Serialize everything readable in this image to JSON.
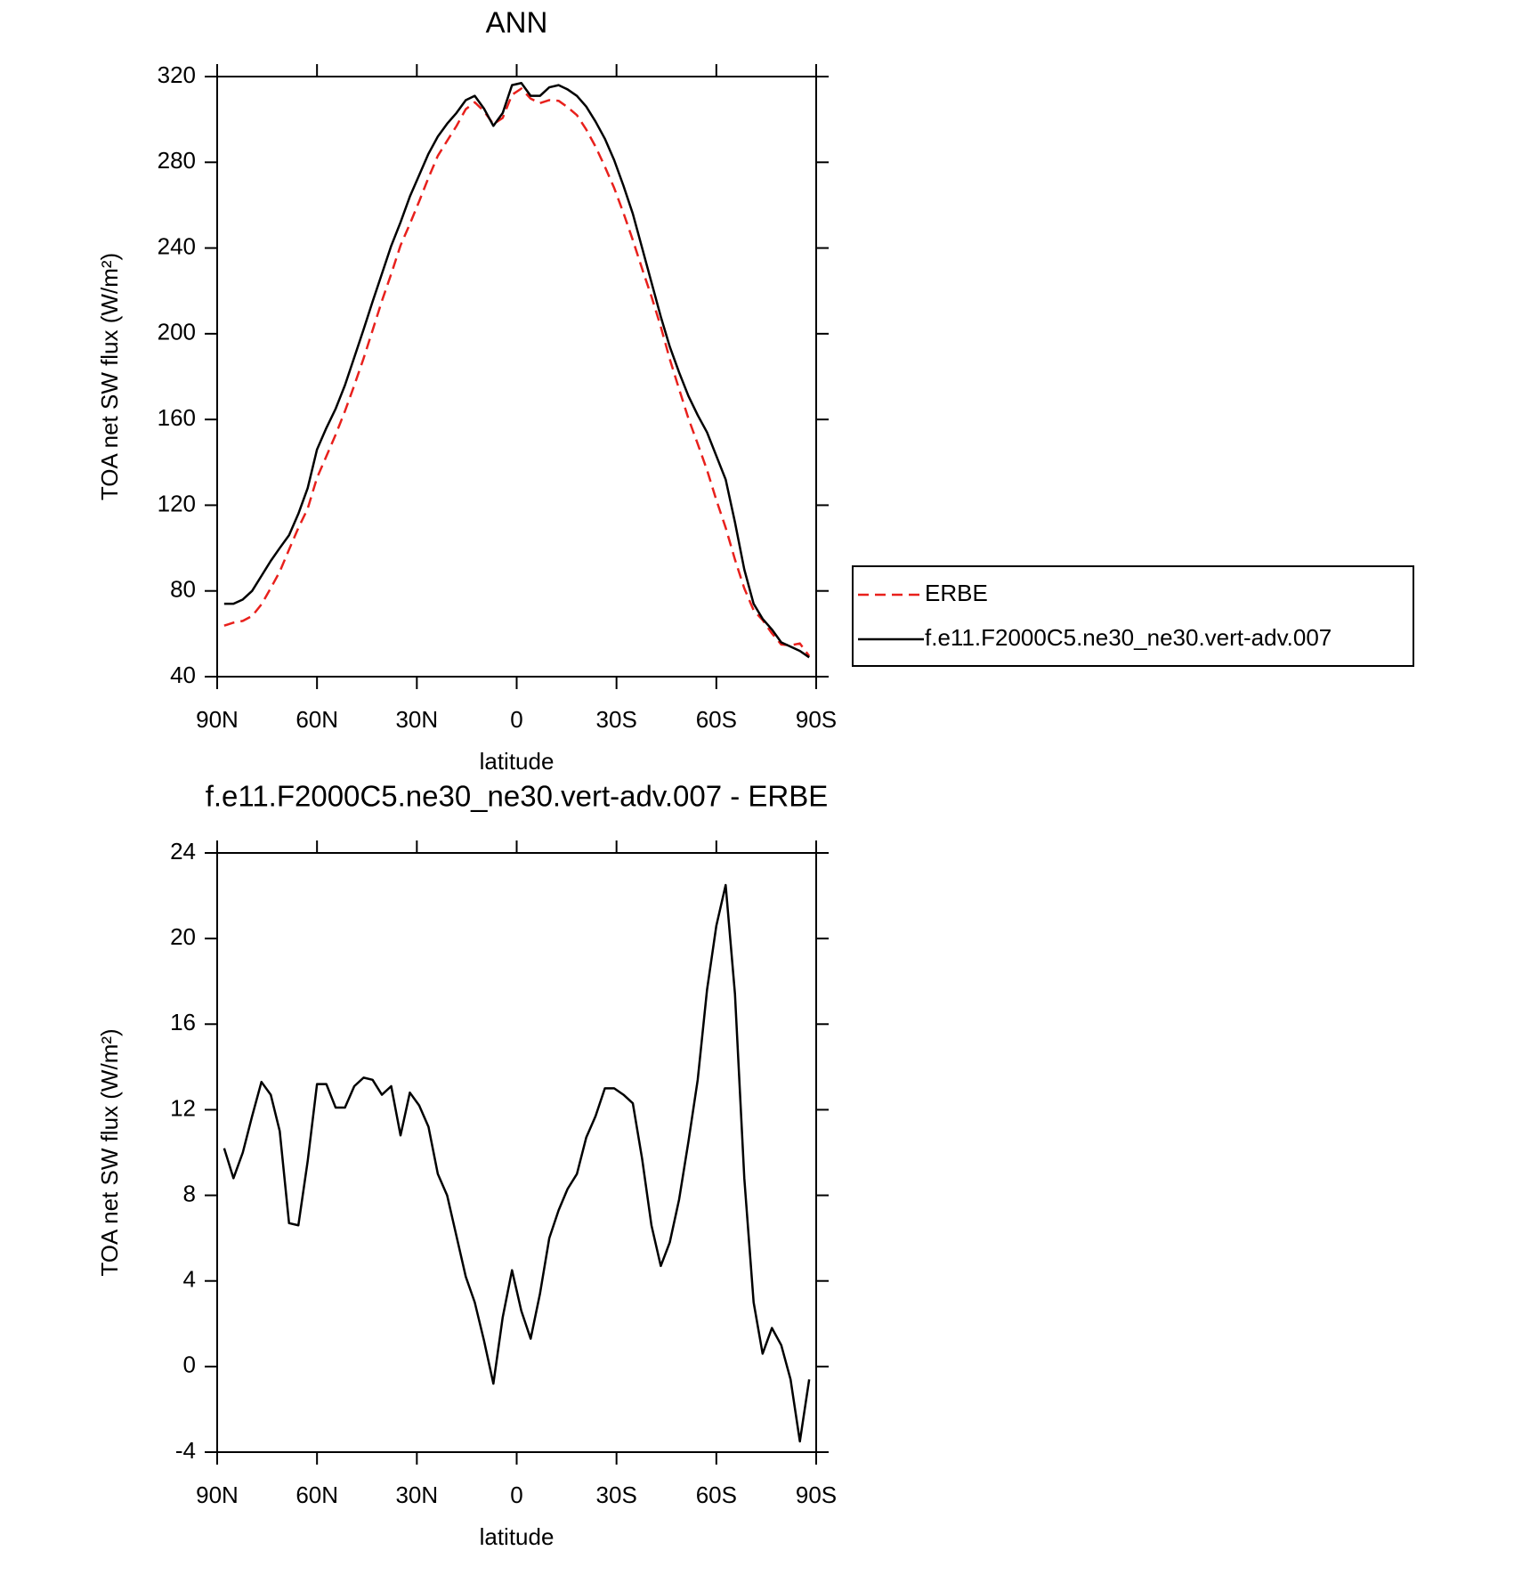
{
  "chart_data": [
    {
      "type": "line",
      "title": "ANN",
      "xlabel": "latitude",
      "ylabel": "TOA net SW flux (W/m²)",
      "xlim": [
        90,
        -90
      ],
      "ylim": [
        40,
        320
      ],
      "xticks": [
        {
          "value": 90,
          "label": "90N"
        },
        {
          "value": 60,
          "label": "60N"
        },
        {
          "value": 30,
          "label": "30N"
        },
        0,
        {
          "value": -30,
          "label": "30S"
        },
        {
          "value": -60,
          "label": "60S"
        },
        {
          "value": -90,
          "label": "90S"
        }
      ],
      "yticks": [
        40,
        80,
        120,
        160,
        200,
        240,
        280,
        320
      ],
      "legend": "outside right",
      "x": [
        87.9,
        85.1,
        82.3,
        79.5,
        76.7,
        73.9,
        71.2,
        68.4,
        65.6,
        62.8,
        60.0,
        57.2,
        54.4,
        51.6,
        48.8,
        46.0,
        43.3,
        40.5,
        37.7,
        34.9,
        32.1,
        29.3,
        26.5,
        23.7,
        20.9,
        18.1,
        15.3,
        12.6,
        9.8,
        7.0,
        4.2,
        1.4,
        -1.4,
        -4.2,
        -7.0,
        -9.8,
        -12.6,
        -15.3,
        -18.1,
        -20.9,
        -23.7,
        -26.5,
        -29.3,
        -32.1,
        -34.9,
        -37.7,
        -40.5,
        -43.3,
        -46.0,
        -48.8,
        -51.6,
        -54.4,
        -57.2,
        -60.0,
        -62.8,
        -65.6,
        -68.4,
        -71.2,
        -73.9,
        -76.7,
        -79.5,
        -82.3,
        -85.1,
        -87.9
      ],
      "series": [
        {
          "name": "ERBE",
          "color": "#e8201c",
          "style": "dashed",
          "values": [
            63.8,
            65.2,
            66,
            68.3,
            73.7,
            81.3,
            89,
            99.3,
            109.4,
            118.4,
            132.8,
            142.8,
            152.9,
            163.9,
            175.9,
            188.5,
            201.6,
            215.3,
            227.9,
            241.2,
            251.2,
            261.8,
            272.8,
            283,
            290,
            296.9,
            304.8,
            308,
            303.8,
            297.8,
            300.7,
            311.5,
            314.4,
            309.7,
            307.6,
            309,
            308.7,
            305.7,
            302,
            295.3,
            287.3,
            278,
            268,
            256.3,
            243.7,
            230.3,
            217.4,
            203.3,
            188.2,
            174.2,
            160.5,
            148.6,
            136.4,
            122.4,
            109.5,
            94.6,
            81.2,
            71,
            66.4,
            60.2,
            55,
            54.6,
            55.5,
            49.6
          ]
        },
        {
          "name": "f.e11.F2000C5.ne30_ne30.vert-adv.007",
          "color": "#000000",
          "style": "solid",
          "values": [
            74,
            74,
            76,
            80,
            87,
            94,
            100,
            106,
            116,
            128,
            146,
            156,
            165,
            176,
            189,
            202,
            215,
            228,
            241,
            252,
            264,
            274,
            284,
            292,
            298,
            303,
            309,
            311,
            305,
            297,
            303,
            316,
            317,
            311,
            311,
            315,
            316,
            314,
            311,
            306,
            299,
            291,
            281,
            269,
            256,
            240,
            224,
            208,
            194,
            182,
            171,
            162,
            154,
            143,
            132,
            112,
            90,
            74,
            67,
            62,
            56,
            54,
            52,
            49
          ]
        }
      ]
    },
    {
      "type": "line",
      "title": "f.e11.F2000C5.ne30_ne30.vert-adv.007 - ERBE",
      "xlabel": "latitude",
      "ylabel": "TOA net SW flux (W/m²)",
      "xlim": [
        90,
        -90
      ],
      "ylim": [
        -4,
        24
      ],
      "xticks": [
        {
          "value": 90,
          "label": "90N"
        },
        {
          "value": 60,
          "label": "60N"
        },
        {
          "value": 30,
          "label": "30N"
        },
        0,
        {
          "value": -30,
          "label": "30S"
        },
        {
          "value": -60,
          "label": "60S"
        },
        {
          "value": -90,
          "label": "90S"
        }
      ],
      "yticks": [
        -4,
        0,
        4,
        8,
        12,
        16,
        20,
        24
      ],
      "x": [
        87.9,
        85.1,
        82.3,
        79.5,
        76.7,
        73.9,
        71.2,
        68.4,
        65.6,
        62.8,
        60.0,
        57.2,
        54.4,
        51.6,
        48.8,
        46.0,
        43.3,
        40.5,
        37.7,
        34.9,
        32.1,
        29.3,
        26.5,
        23.7,
        20.9,
        18.1,
        15.3,
        12.6,
        9.8,
        7.0,
        4.2,
        1.4,
        -1.4,
        -4.2,
        -7.0,
        -9.8,
        -12.6,
        -15.3,
        -18.1,
        -20.9,
        -23.7,
        -26.5,
        -29.3,
        -32.1,
        -34.9,
        -37.7,
        -40.5,
        -43.3,
        -46.0,
        -48.8,
        -51.6,
        -54.4,
        -57.2,
        -60.0,
        -62.8,
        -65.6,
        -68.4,
        -71.2,
        -73.9,
        -76.7,
        -79.5,
        -82.3,
        -85.1,
        -87.9
      ],
      "series": [
        {
          "color": "#000000",
          "style": "solid",
          "values": [
            10.2,
            8.8,
            10.0,
            11.7,
            13.3,
            12.7,
            11.0,
            6.7,
            6.6,
            9.6,
            13.2,
            13.2,
            12.1,
            12.1,
            13.1,
            13.5,
            13.4,
            12.7,
            13.1,
            10.8,
            12.8,
            12.2,
            11.2,
            9.0,
            8.0,
            6.1,
            4.2,
            3.0,
            1.2,
            -0.8,
            2.3,
            4.5,
            2.6,
            1.3,
            3.4,
            6.0,
            7.3,
            8.3,
            9.0,
            10.7,
            11.7,
            13.0,
            13.0,
            12.7,
            12.3,
            9.7,
            6.6,
            4.7,
            5.8,
            7.8,
            10.5,
            13.4,
            17.6,
            20.6,
            22.5,
            17.4,
            8.8,
            3.0,
            0.6,
            1.8,
            1.0,
            -0.6,
            -3.5,
            -0.6
          ]
        }
      ]
    }
  ]
}
